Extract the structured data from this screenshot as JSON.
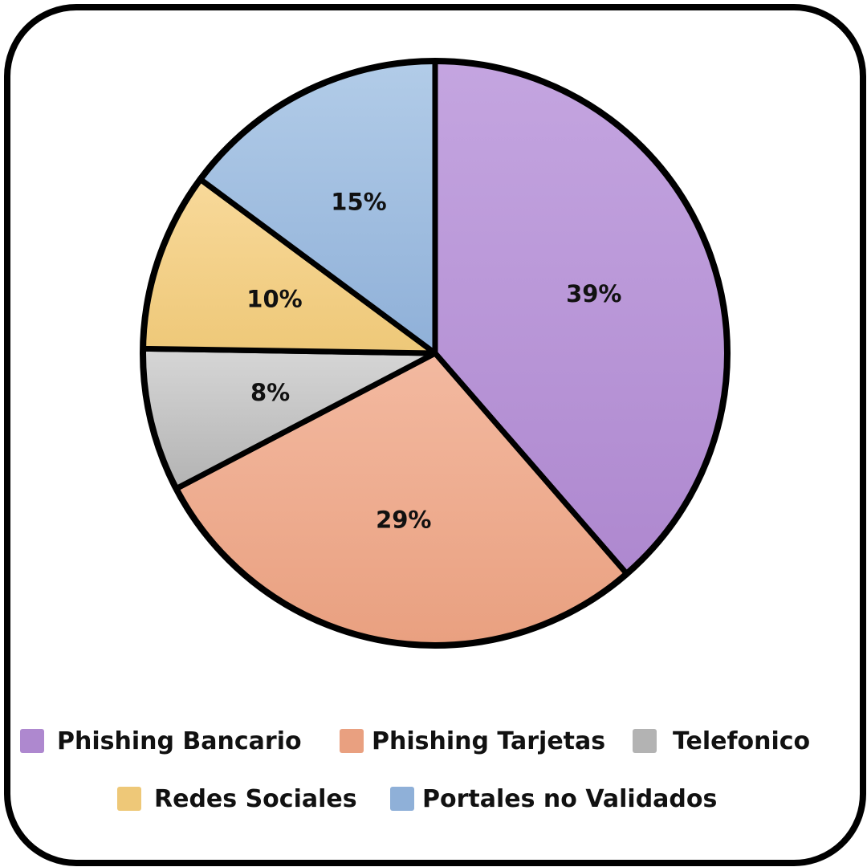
{
  "chart_data": {
    "type": "pie",
    "title": "",
    "start_angle_deg": 0,
    "direction": "clockwise",
    "slices": [
      {
        "label": "Phishing Bancario",
        "value": 39,
        "display": "39%",
        "color": "#AE88CF",
        "color_light": "#C4A5E0"
      },
      {
        "label": "Phishing Tarjetas",
        "value": 29,
        "display": "29%",
        "color": "#E9A080",
        "color_light": "#F3B9A0"
      },
      {
        "label": "Telefonico",
        "value": 8,
        "display": "8%",
        "color": "#B3B3B3",
        "color_light": "#D6D6D6"
      },
      {
        "label": "Redes Sociales",
        "value": 10,
        "display": "10%",
        "color": "#EEC878",
        "color_light": "#F8D99A"
      },
      {
        "label": "Portales no Validados",
        "value": 15,
        "display": "15%",
        "color": "#8FB0D8",
        "color_light": "#B2CCE8"
      }
    ],
    "legend_position": "bottom"
  }
}
